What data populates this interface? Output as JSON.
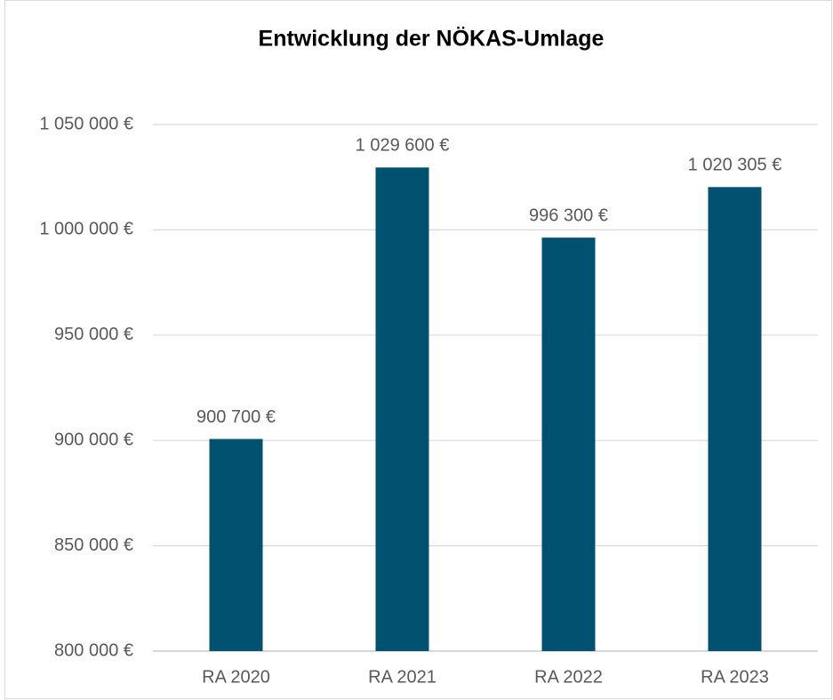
{
  "chart_data": {
    "type": "bar",
    "title": "Entwicklung der NÖKAS-Umlage",
    "categories": [
      "RA 2020",
      "RA 2021",
      "RA 2022",
      "RA 2023"
    ],
    "values": [
      900700,
      1029600,
      996300,
      1020305
    ],
    "value_labels": [
      "900 700 €",
      "1 029 600 €",
      "996 300 €",
      "1 020 305 €"
    ],
    "color": "#00506f",
    "ylim": [
      800000,
      1050000
    ],
    "yticks": [
      {
        "value": 800000,
        "label": "800 000 €"
      },
      {
        "value": 850000,
        "label": "850 000 €"
      },
      {
        "value": 900000,
        "label": "900 000 €"
      },
      {
        "value": 950000,
        "label": "950 000 €"
      },
      {
        "value": 1000000,
        "label": "1 000 000 €"
      },
      {
        "value": 1050000,
        "label": "1 050 000 €"
      }
    ],
    "grid": true
  }
}
